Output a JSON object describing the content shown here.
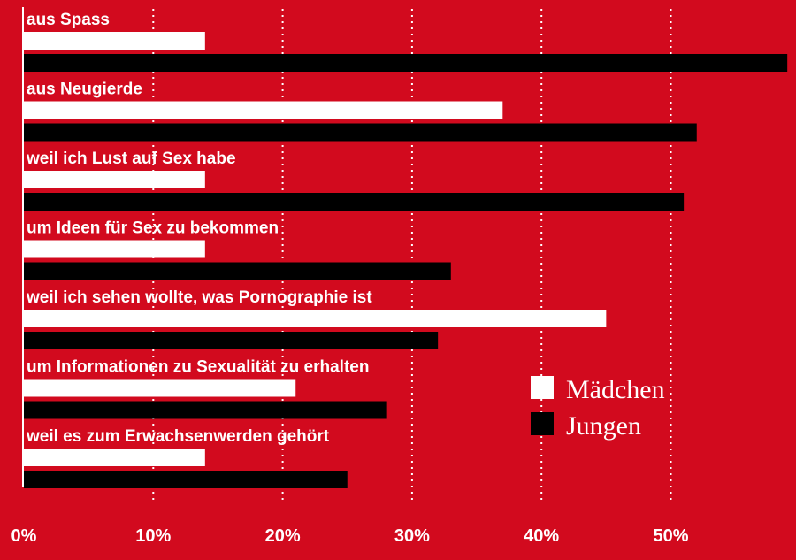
{
  "chart_data": {
    "type": "bar",
    "orientation": "horizontal",
    "categories": [
      "aus Spass",
      "aus Neugierde",
      "weil ich Lust auf Sex habe",
      "um Ideen für Sex zu bekommen",
      "weil ich sehen wollte, was Pornographie ist",
      "um Informationen zu Sexualität zu erhalten",
      "weil es zum Erwachsenwerden gehört"
    ],
    "series": [
      {
        "name": "Mädchen",
        "color": "#ffffff",
        "values": [
          14,
          37,
          14,
          14,
          45,
          21,
          14
        ]
      },
      {
        "name": "Jungen",
        "color": "#000000",
        "values": [
          59,
          52,
          51,
          33,
          32,
          28,
          25
        ]
      }
    ],
    "x_ticks": [
      "0%",
      "10%",
      "20%",
      "30%",
      "40%",
      "50%"
    ],
    "xlim": [
      0,
      59
    ],
    "grid": "vertical dotted",
    "legend_position": "bottom-right",
    "background": "#d20a1e"
  }
}
